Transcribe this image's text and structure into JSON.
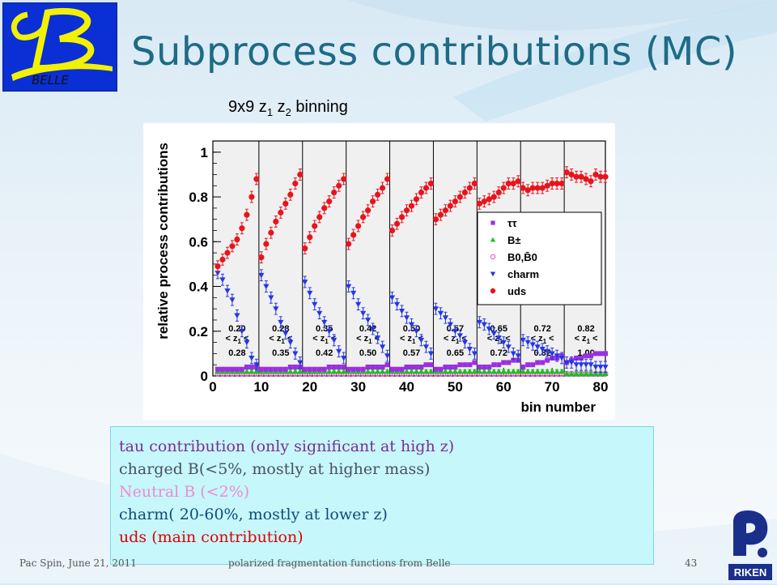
{
  "slide": {
    "title": "Subprocess contributions (MC)",
    "logo_text": "BELLE",
    "binning_label": {
      "prefix": "9x9 z",
      "sub1": "1",
      "mid": " z",
      "sub2": "2",
      "suffix": " binning"
    },
    "footer_left": "Pac Spin, June 21, 2011",
    "footer_center": "polarized fragmentation functions from Belle",
    "page_number": "43",
    "riken_logo_text": "RIKEN",
    "colors": {
      "title": "#1e6b86",
      "notes_bg": "#c6f7fb",
      "logo_blue": "#0a2fd4",
      "logo_yellow": "#f2f200"
    }
  },
  "notes": [
    {
      "text": "tau contribution (only significant at high z)",
      "color": "#7a2e96"
    },
    {
      "text": "charged B(<5%, mostly at higher mass)",
      "color": "#4a5060"
    },
    {
      "text": "Neutral B (<2%)",
      "color": "#f08ad0"
    },
    {
      "text": "charm(   20-60%, mostly at lower z)",
      "color": "#124a78"
    },
    {
      "text": "uds (main contribution)",
      "color": "#e00000"
    }
  ],
  "chart_data": {
    "type": "scatter",
    "xlabel": "bin number",
    "ylabel": "relative process contributions",
    "xlim": [
      0,
      81
    ],
    "ylim": [
      0,
      1.05
    ],
    "xticks": [
      "0",
      "10",
      "20",
      "30",
      "40",
      "50",
      "60",
      "70",
      "80"
    ],
    "yticks": [
      "0",
      "0.2",
      "0.4",
      "0.6",
      "0.8",
      "1"
    ],
    "z_bins": [
      {
        "lo": "0.20",
        "hi": "0.28"
      },
      {
        "lo": "0.28",
        "hi": "0.35"
      },
      {
        "lo": "0.35",
        "hi": "0.42"
      },
      {
        "lo": "0.42",
        "hi": "0.50"
      },
      {
        "lo": "0.50",
        "hi": "0.57"
      },
      {
        "lo": "0.57",
        "hi": "0.65"
      },
      {
        "lo": "0.65",
        "hi": "0.72"
      },
      {
        "lo": "0.72",
        "hi": "0.82"
      },
      {
        "lo": "0.82",
        "hi": "1.00"
      }
    ],
    "z_label": "< z",
    "z_label_sub": "1",
    "legend": {
      "placement": "right",
      "entries": [
        "ττ",
        "B±",
        "B0,B̄0",
        "charm",
        "uds"
      ]
    },
    "series": [
      {
        "name": "uds",
        "color": "#e8141c",
        "marker": "circle-filled",
        "values": [
          0.49,
          0.52,
          0.55,
          0.58,
          0.61,
          0.66,
          0.72,
          0.8,
          0.88,
          0.53,
          0.59,
          0.64,
          0.69,
          0.73,
          0.77,
          0.81,
          0.86,
          0.9,
          0.57,
          0.62,
          0.67,
          0.71,
          0.75,
          0.78,
          0.82,
          0.85,
          0.88,
          0.59,
          0.63,
          0.67,
          0.71,
          0.74,
          0.78,
          0.81,
          0.84,
          0.88,
          0.65,
          0.68,
          0.71,
          0.74,
          0.76,
          0.79,
          0.82,
          0.84,
          0.86,
          0.7,
          0.72,
          0.74,
          0.76,
          0.78,
          0.8,
          0.82,
          0.84,
          0.86,
          0.77,
          0.78,
          0.79,
          0.8,
          0.82,
          0.84,
          0.86,
          0.86,
          0.87,
          0.84,
          0.83,
          0.84,
          0.84,
          0.84,
          0.85,
          0.86,
          0.86,
          0.86,
          0.91,
          0.9,
          0.89,
          0.89,
          0.88,
          0.87,
          0.9,
          0.89,
          0.89
        ]
      },
      {
        "name": "charm",
        "color": "#2436e6",
        "marker": "triangle-down",
        "values": [
          0.46,
          0.43,
          0.38,
          0.34,
          0.27,
          0.2,
          0.15,
          0.08,
          0.05,
          0.45,
          0.4,
          0.35,
          0.3,
          0.24,
          0.19,
          0.15,
          0.1,
          0.06,
          0.42,
          0.37,
          0.32,
          0.28,
          0.24,
          0.2,
          0.16,
          0.11,
          0.08,
          0.4,
          0.37,
          0.32,
          0.28,
          0.25,
          0.21,
          0.17,
          0.13,
          0.09,
          0.35,
          0.32,
          0.29,
          0.26,
          0.23,
          0.2,
          0.16,
          0.13,
          0.1,
          0.3,
          0.28,
          0.26,
          0.23,
          0.2,
          0.18,
          0.15,
          0.12,
          0.1,
          0.24,
          0.23,
          0.21,
          0.19,
          0.17,
          0.15,
          0.13,
          0.1,
          0.09,
          0.16,
          0.15,
          0.14,
          0.13,
          0.12,
          0.11,
          0.1,
          0.09,
          0.08,
          0.06,
          0.06,
          0.05,
          0.05,
          0.05,
          0.05,
          0.04,
          0.04,
          0.04
        ]
      },
      {
        "name": "ττ",
        "color": "#9b2fe0",
        "marker": "square",
        "values": [
          0.03,
          0.03,
          0.03,
          0.03,
          0.03,
          0.03,
          0.04,
          0.04,
          0.04,
          0.03,
          0.03,
          0.03,
          0.03,
          0.03,
          0.03,
          0.04,
          0.04,
          0.04,
          0.03,
          0.03,
          0.03,
          0.03,
          0.03,
          0.04,
          0.04,
          0.04,
          0.04,
          0.03,
          0.03,
          0.03,
          0.03,
          0.04,
          0.04,
          0.04,
          0.04,
          0.05,
          0.03,
          0.03,
          0.03,
          0.04,
          0.04,
          0.04,
          0.04,
          0.05,
          0.05,
          0.03,
          0.03,
          0.04,
          0.04,
          0.04,
          0.05,
          0.05,
          0.05,
          0.06,
          0.04,
          0.04,
          0.04,
          0.05,
          0.05,
          0.06,
          0.06,
          0.07,
          0.07,
          0.04,
          0.05,
          0.05,
          0.06,
          0.06,
          0.07,
          0.08,
          0.08,
          0.09,
          0.06,
          0.07,
          0.08,
          0.08,
          0.09,
          0.09,
          0.1,
          0.1,
          0.1
        ]
      },
      {
        "name": "B±",
        "color": "#18c218",
        "marker": "triangle-up",
        "values": [
          0.02,
          0.02,
          0.02,
          0.02,
          0.02,
          0.02,
          0.02,
          0.02,
          0.02,
          0.02,
          0.02,
          0.02,
          0.02,
          0.02,
          0.02,
          0.02,
          0.02,
          0.02,
          0.02,
          0.02,
          0.02,
          0.02,
          0.02,
          0.02,
          0.02,
          0.02,
          0.02,
          0.02,
          0.02,
          0.02,
          0.02,
          0.02,
          0.02,
          0.02,
          0.02,
          0.02,
          0.02,
          0.02,
          0.02,
          0.02,
          0.02,
          0.02,
          0.02,
          0.02,
          0.02,
          0.02,
          0.02,
          0.02,
          0.02,
          0.02,
          0.02,
          0.02,
          0.02,
          0.02,
          0.02,
          0.02,
          0.02,
          0.02,
          0.02,
          0.02,
          0.02,
          0.02,
          0.02,
          0.02,
          0.02,
          0.02,
          0.02,
          0.02,
          0.02,
          0.02,
          0.02,
          0.02,
          0.01,
          0.01,
          0.01,
          0.01,
          0.01,
          0.01,
          0.01,
          0.01,
          0.01
        ]
      },
      {
        "name": "B0,B̄0",
        "color": "#e64ad2",
        "marker": "circle-open",
        "values": [
          0.01,
          0.01,
          0.01,
          0.01,
          0.01,
          0.01,
          0.01,
          0.01,
          0.01,
          0.01,
          0.01,
          0.01,
          0.01,
          0.01,
          0.01,
          0.01,
          0.01,
          0.01,
          0.01,
          0.01,
          0.01,
          0.01,
          0.01,
          0.01,
          0.01,
          0.01,
          0.01,
          0.01,
          0.01,
          0.01,
          0.01,
          0.01,
          0.01,
          0.01,
          0.01,
          0.01,
          0.01,
          0.01,
          0.01,
          0.01,
          0.01,
          0.01,
          0.01,
          0.01,
          0.01,
          0.01,
          0.01,
          0.01,
          0.01,
          0.01,
          0.01,
          0.01,
          0.01,
          0.01,
          0.01,
          0.01,
          0.01,
          0.01,
          0.01,
          0.01,
          0.01,
          0.01,
          0.01,
          0.01,
          0.01,
          0.01,
          0.01,
          0.01,
          0.01,
          0.01,
          0.01,
          0.01,
          0.01,
          0.01,
          0.01,
          0.01,
          0.01,
          0.01,
          0.01,
          0.01,
          0.01
        ]
      }
    ]
  }
}
